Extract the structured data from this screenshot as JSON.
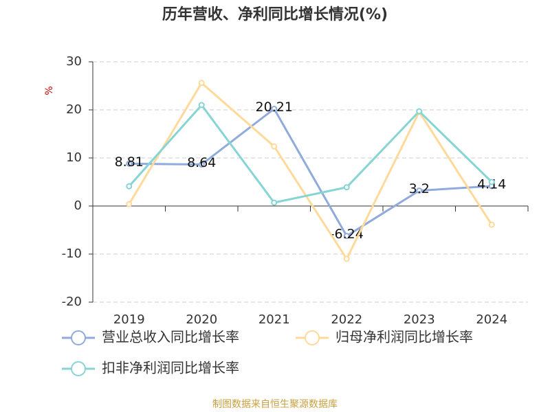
{
  "chart_data": {
    "type": "line",
    "title": "历年营收、净利同比增长情况(%)",
    "y_label": "%",
    "source": "制图数据来自恒生聚源数据库",
    "categories": [
      "2019",
      "2020",
      "2021",
      "2022",
      "2023",
      "2024"
    ],
    "series": [
      {
        "name": "营业总收入同比增长率",
        "color": "#8faadc",
        "values": [
          8.81,
          8.64,
          20.21,
          -6.24,
          3.2,
          4.14
        ],
        "data_labels": true
      },
      {
        "name": "归母净利润同比增长率",
        "color": "#ffd99a",
        "values": [
          0.4,
          25.6,
          12.4,
          -11,
          19.6,
          -3.9
        ]
      },
      {
        "name": "扣非净利润同比增长率",
        "color": "#86d4d4",
        "values": [
          4.1,
          21,
          0.7,
          3.9,
          19.7,
          5
        ]
      }
    ],
    "ylim": [
      -20,
      30
    ],
    "yticks": [
      -20,
      -10,
      0,
      10,
      20,
      30
    ],
    "grid": true
  }
}
